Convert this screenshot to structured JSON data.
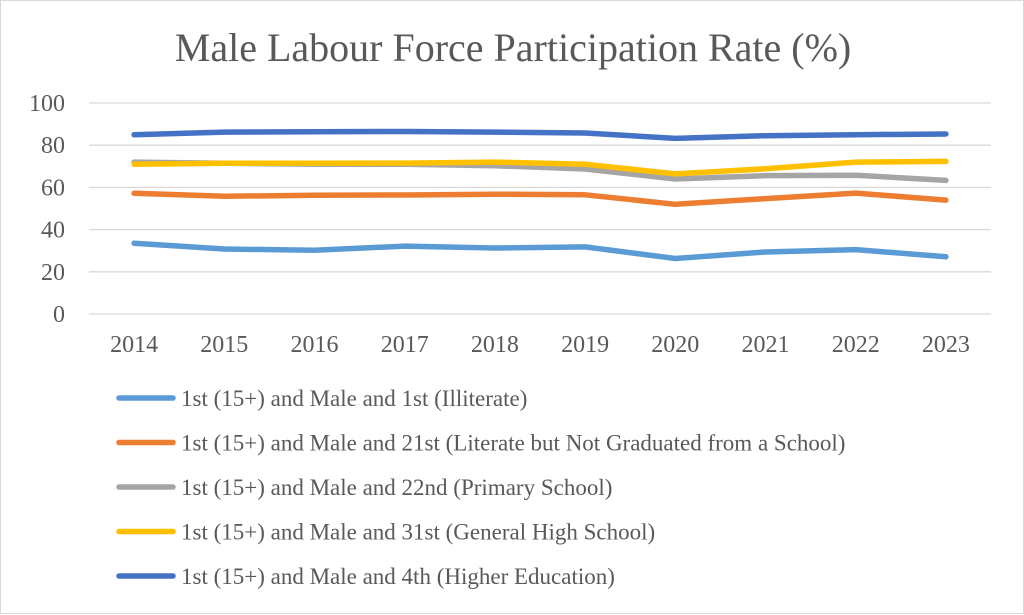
{
  "chart_data": {
    "type": "line",
    "title": "Male Labour Force Participation Rate (%)",
    "xlabel": "",
    "ylabel": "",
    "x": [
      "2014",
      "2015",
      "2016",
      "2017",
      "2018",
      "2019",
      "2020",
      "2021",
      "2022",
      "2023"
    ],
    "ylim": [
      0,
      100
    ],
    "yticks": [
      0,
      20,
      40,
      60,
      80,
      100
    ],
    "grid": true,
    "legend_position": "bottom",
    "series": [
      {
        "name": "1st (15+) and Male and 1st (Illiterate)",
        "color": "#5B9BD5",
        "values": [
          33.5,
          30.8,
          30.2,
          32.2,
          31.3,
          31.8,
          26.3,
          29.4,
          30.5,
          27.1
        ]
      },
      {
        "name": "1st (15+) and Male and 21st (Literate but Not Graduated from a School)",
        "color": "#ED7D31",
        "values": [
          57.2,
          55.8,
          56.3,
          56.4,
          56.8,
          56.5,
          52.0,
          54.7,
          57.3,
          54.0
        ]
      },
      {
        "name": "1st (15+) and Male and 22nd (Primary School)",
        "color": "#A5A5A5",
        "values": [
          72.0,
          71.4,
          71.0,
          71.0,
          70.3,
          68.7,
          64.0,
          65.6,
          65.8,
          63.3
        ]
      },
      {
        "name": "1st (15+) and Male and 31st (General High School)",
        "color": "#FFC000",
        "values": [
          71.0,
          71.4,
          71.4,
          71.5,
          72.0,
          71.0,
          66.4,
          68.8,
          72.0,
          72.3
        ]
      },
      {
        "name": "1st (15+) and Male and 4th (Higher Education)",
        "color": "#4472C4",
        "values": [
          85.0,
          86.2,
          86.4,
          86.5,
          86.2,
          85.8,
          83.2,
          84.5,
          85.0,
          85.3
        ]
      }
    ]
  }
}
